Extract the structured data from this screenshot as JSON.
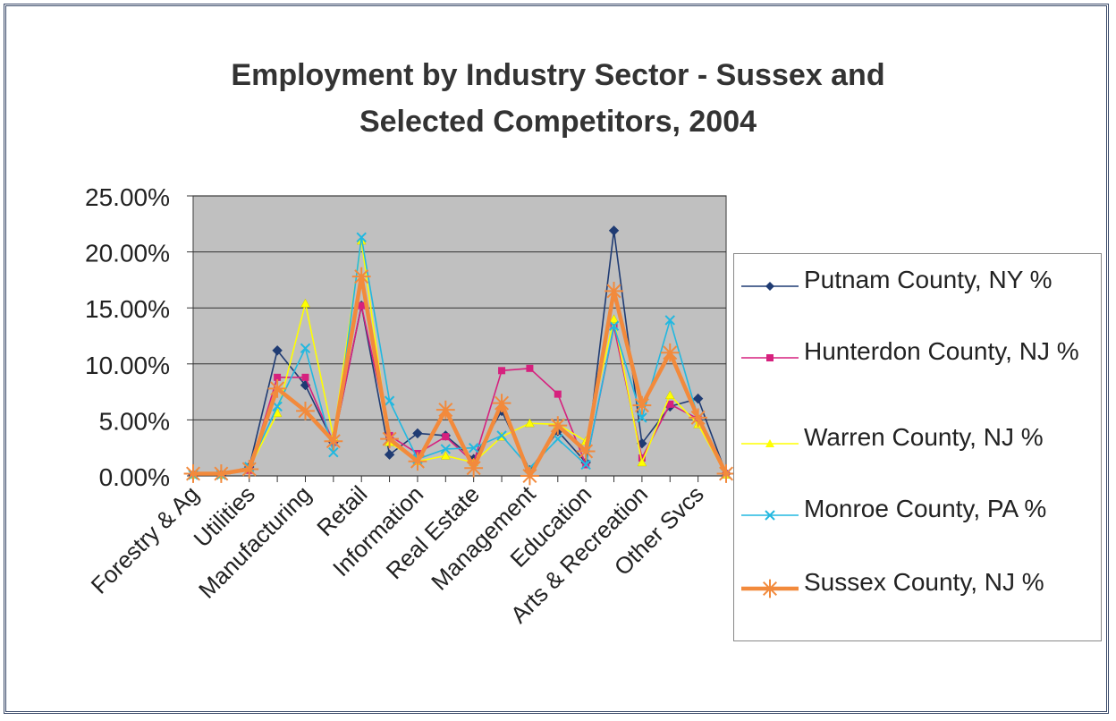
{
  "chart_data": {
    "type": "line",
    "title_lines": [
      "Employment by Industry Sector - Sussex and",
      "Selected Competitors, 2004"
    ],
    "xlabel": "",
    "ylabel": "",
    "ylim": [
      0,
      0.25
    ],
    "y_ticks": [
      0,
      0.05,
      0.1,
      0.15,
      0.2,
      0.25
    ],
    "y_tick_labels": [
      "0.00%",
      "5.00%",
      "10.00%",
      "15.00%",
      "20.00%",
      "25.00%"
    ],
    "grid": true,
    "legend_position": "right",
    "plot_background": "#c0c0c0",
    "categories": [
      "Forestry & Ag",
      "",
      "Utilities",
      "",
      "Manufacturing",
      "",
      "Retail",
      "",
      "Information",
      "",
      "Real Estate",
      "",
      "Management",
      "",
      "Education",
      "",
      "Arts & Recreation",
      "",
      "Other Svcs",
      ""
    ],
    "series": [
      {
        "name": "Putnam County, NY %",
        "color": "#1f3b73",
        "marker": "diamond",
        "values": [
          0.001,
          0.001,
          0.008,
          0.112,
          0.081,
          0.03,
          0.152,
          0.019,
          0.038,
          0.036,
          0.015,
          0.058,
          0.005,
          0.04,
          0.012,
          0.219,
          0.029,
          0.062,
          0.069,
          0.002
        ]
      },
      {
        "name": "Hunterdon County, NJ %",
        "color": "#d6217e",
        "marker": "square",
        "values": [
          0.001,
          0.001,
          0.005,
          0.088,
          0.088,
          0.03,
          0.152,
          0.036,
          0.02,
          0.035,
          0.012,
          0.094,
          0.096,
          0.073,
          0.01,
          0.133,
          0.016,
          0.064,
          0.051,
          0.002
        ]
      },
      {
        "name": "Warren County, NJ %",
        "color": "#ffff00",
        "marker": "triangle",
        "values": [
          0.001,
          0.001,
          0.007,
          0.056,
          0.154,
          0.035,
          0.21,
          0.03,
          0.013,
          0.018,
          0.012,
          0.035,
          0.047,
          0.046,
          0.031,
          0.14,
          0.012,
          0.072,
          0.046,
          0.001
        ]
      },
      {
        "name": "Monroe County, PA %",
        "color": "#22b8e0",
        "marker": "x",
        "values": [
          0.001,
          0.001,
          0.008,
          0.062,
          0.114,
          0.021,
          0.213,
          0.067,
          0.015,
          0.024,
          0.025,
          0.036,
          0.007,
          0.033,
          0.01,
          0.134,
          0.052,
          0.139,
          0.052,
          0.002
        ]
      },
      {
        "name": "Sussex County, NJ %",
        "color": "#f28a3c",
        "marker": "asterisk",
        "values": [
          0.002,
          0.002,
          0.006,
          0.078,
          0.058,
          0.031,
          0.178,
          0.033,
          0.013,
          0.059,
          0.007,
          0.065,
          0.0,
          0.045,
          0.022,
          0.165,
          0.063,
          0.11,
          0.052,
          0.002
        ]
      }
    ]
  }
}
